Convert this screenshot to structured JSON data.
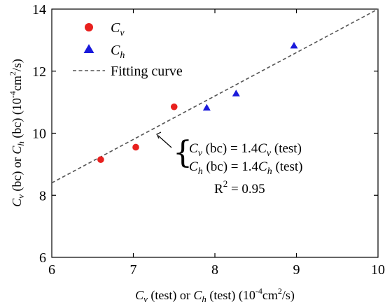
{
  "chart_data": {
    "type": "scatter",
    "xlim": [
      6,
      10
    ],
    "ylim": [
      6,
      14
    ],
    "x_ticks": [
      "6",
      "7",
      "8",
      "9",
      "10"
    ],
    "y_ticks": [
      "6",
      "8",
      "10",
      "12",
      "14"
    ],
    "xlabel": {
      "main_a": "C",
      "sub_a": "v",
      "mid": " (test) or ",
      "main_b": "C",
      "sub_b": "h",
      "tail1": " (test) (10",
      "sup1": "-4",
      "tail2": "cm",
      "sup2": "2",
      "tail3": "/s)"
    },
    "ylabel": {
      "main_a": "C",
      "sub_a": "v",
      "mid": " (bc) or ",
      "main_b": "C",
      "sub_b": "h",
      "tail1": " (bc) (10",
      "sup1": "-4",
      "tail2": "cm",
      "sup2": "2",
      "tail3": "/s)"
    },
    "series": [
      {
        "name": "Cv",
        "label_main": "C",
        "label_sub": "v",
        "marker": "circle",
        "color": "#e8201e",
        "points": [
          [
            6.6,
            9.15
          ],
          [
            7.03,
            9.55
          ],
          [
            7.5,
            10.85
          ]
        ]
      },
      {
        "name": "Ch",
        "label_main": "C",
        "label_sub": "h",
        "marker": "triangle",
        "color": "#1a1adb",
        "points": [
          [
            7.9,
            10.82
          ],
          [
            8.26,
            11.28
          ],
          [
            8.97,
            12.82
          ]
        ]
      }
    ],
    "fit_line": {
      "name": "Fitting curve",
      "color": "#555555",
      "slope": 1.4,
      "intercept": 0,
      "x_range": [
        6,
        10
      ]
    },
    "annotation": {
      "eq1": {
        "main_a": "C",
        "sub_a": "v",
        "mid": " (bc) = 1.4",
        "main_b": "C",
        "sub_b": "v",
        "tail": " (test)"
      },
      "eq2": {
        "main_a": "C",
        "sub_a": "h",
        "mid": " (bc) = 1.4",
        "main_b": "C",
        "sub_b": "h",
        "tail": " (test)"
      },
      "r2": {
        "base": "R",
        "sup": "2",
        "tail": " = 0.95"
      },
      "arrow_target": [
        7.3,
        10.0
      ]
    },
    "legend_position": "top-left",
    "grid": false
  }
}
